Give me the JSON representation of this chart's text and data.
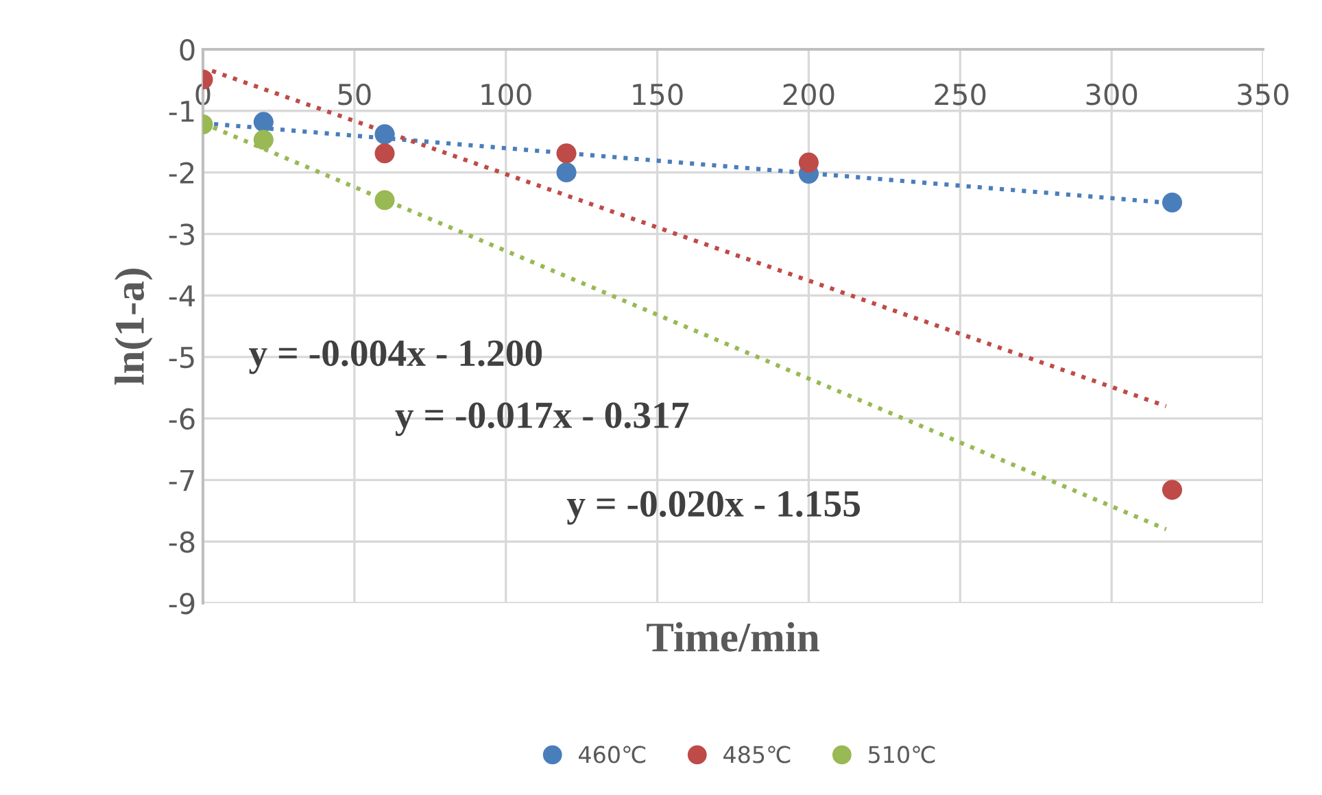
{
  "chart_data": {
    "type": "scatter",
    "xlabel": "Time/min",
    "ylabel": "ln(1-a)",
    "xlim": [
      0,
      350
    ],
    "xticks": [
      0,
      50,
      100,
      150,
      200,
      250,
      300,
      350
    ],
    "ylim": [
      -9,
      0
    ],
    "yticks": [
      0,
      -1,
      -2,
      -3,
      -4,
      -5,
      -6,
      -7,
      -8,
      -9
    ],
    "grid": true,
    "legend": "bottom",
    "series": [
      {
        "name": "460℃",
        "color": "#4a7ebb",
        "marker": "circle",
        "x": [
          20,
          60,
          120,
          200,
          320
        ],
        "values": [
          -1.18,
          -1.38,
          -2.0,
          -2.02,
          -2.49
        ]
      },
      {
        "name": "485℃",
        "color": "#be4b48",
        "marker": "circle",
        "x": [
          0,
          20,
          60,
          120,
          200,
          320
        ],
        "values": [
          -0.49,
          null,
          -1.69,
          -1.69,
          -1.84,
          -7.16
        ]
      },
      {
        "name": "510℃",
        "color": "#98b954",
        "marker": "circle",
        "x": [
          0,
          20,
          60
        ],
        "values": [
          -1.22,
          -1.47,
          -2.45
        ]
      },
      {
        "type": "line",
        "line_style": "dotted",
        "color": "#4a7ebb",
        "x": [
          0,
          320
        ],
        "values": [
          -1.2,
          -2.5
        ]
      },
      {
        "type": "line",
        "line_style": "dotted",
        "color": "#be4b48",
        "x": [
          3,
          318
        ],
        "values": [
          -0.35,
          -5.8
        ]
      },
      {
        "type": "line",
        "line_style": "dotted",
        "color": "#98b954",
        "x": [
          0,
          318
        ],
        "values": [
          -1.2,
          -7.8
        ]
      }
    ],
    "annotations": [
      "y = -0.004x - 1.200",
      "y = -0.017x - 0.317",
      "y = -0.020x - 1.155"
    ]
  }
}
